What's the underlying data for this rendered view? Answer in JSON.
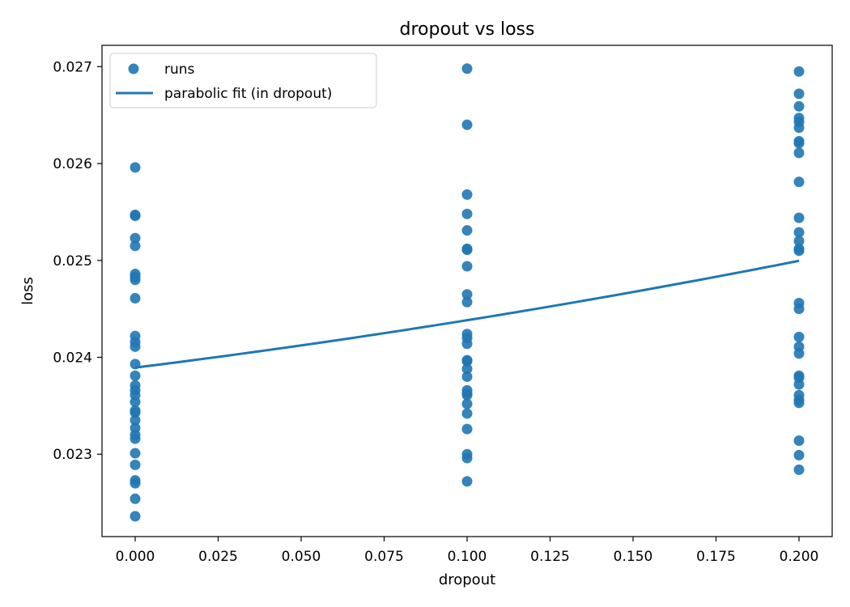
{
  "chart_data": {
    "type": "scatter",
    "title": "dropout vs loss",
    "xlabel": "dropout",
    "ylabel": "loss",
    "xlim": [
      -0.01,
      0.21
    ],
    "ylim": [
      0.02215,
      0.02722
    ],
    "xticks": [
      0.0,
      0.025,
      0.05,
      0.075,
      0.1,
      0.125,
      0.15,
      0.175,
      0.2
    ],
    "xtick_labels": [
      "0.000",
      "0.025",
      "0.050",
      "0.075",
      "0.100",
      "0.125",
      "0.150",
      "0.175",
      "0.200"
    ],
    "yticks": [
      0.023,
      0.024,
      0.025,
      0.026,
      0.027
    ],
    "ytick_labels": [
      "0.023",
      "0.024",
      "0.025",
      "0.026",
      "0.027"
    ],
    "grid": false,
    "legend_position": "top-left",
    "color": "#1f77b4",
    "series": [
      {
        "name": "runs",
        "kind": "scatter",
        "points": [
          [
            0.0,
            0.02596
          ],
          [
            0.0,
            0.02547
          ],
          [
            0.0,
            0.02546
          ],
          [
            0.0,
            0.02523
          ],
          [
            0.0,
            0.02515
          ],
          [
            0.0,
            0.02486
          ],
          [
            0.0,
            0.02483
          ],
          [
            0.0,
            0.0248
          ],
          [
            0.0,
            0.02461
          ],
          [
            0.0,
            0.02422
          ],
          [
            0.0,
            0.02416
          ],
          [
            0.0,
            0.02411
          ],
          [
            0.0,
            0.02393
          ],
          [
            0.0,
            0.02381
          ],
          [
            0.0,
            0.02371
          ],
          [
            0.0,
            0.02366
          ],
          [
            0.0,
            0.02361
          ],
          [
            0.0,
            0.02354
          ],
          [
            0.0,
            0.02345
          ],
          [
            0.0,
            0.02343
          ],
          [
            0.0,
            0.02335
          ],
          [
            0.0,
            0.02327
          ],
          [
            0.0,
            0.0232
          ],
          [
            0.0,
            0.02316
          ],
          [
            0.0,
            0.02301
          ],
          [
            0.0,
            0.02289
          ],
          [
            0.0,
            0.02273
          ],
          [
            0.0,
            0.0227
          ],
          [
            0.0,
            0.02254
          ],
          [
            0.0,
            0.02236
          ],
          [
            0.1,
            0.02698
          ],
          [
            0.1,
            0.0264
          ],
          [
            0.1,
            0.02568
          ],
          [
            0.1,
            0.02548
          ],
          [
            0.1,
            0.02531
          ],
          [
            0.1,
            0.02512
          ],
          [
            0.1,
            0.02511
          ],
          [
            0.1,
            0.02494
          ],
          [
            0.1,
            0.02465
          ],
          [
            0.1,
            0.02457
          ],
          [
            0.1,
            0.02424
          ],
          [
            0.1,
            0.0242
          ],
          [
            0.1,
            0.02414
          ],
          [
            0.1,
            0.02397
          ],
          [
            0.1,
            0.02396
          ],
          [
            0.1,
            0.02388
          ],
          [
            0.1,
            0.0238
          ],
          [
            0.1,
            0.02366
          ],
          [
            0.1,
            0.02363
          ],
          [
            0.1,
            0.02361
          ],
          [
            0.1,
            0.02352
          ],
          [
            0.1,
            0.02342
          ],
          [
            0.1,
            0.02326
          ],
          [
            0.1,
            0.023
          ],
          [
            0.1,
            0.02296
          ],
          [
            0.1,
            0.02272
          ],
          [
            0.2,
            0.02695
          ],
          [
            0.2,
            0.02672
          ],
          [
            0.2,
            0.02659
          ],
          [
            0.2,
            0.02647
          ],
          [
            0.2,
            0.02643
          ],
          [
            0.2,
            0.02637
          ],
          [
            0.2,
            0.02623
          ],
          [
            0.2,
            0.02621
          ],
          [
            0.2,
            0.02611
          ],
          [
            0.2,
            0.02581
          ],
          [
            0.2,
            0.02544
          ],
          [
            0.2,
            0.02529
          ],
          [
            0.2,
            0.0252
          ],
          [
            0.2,
            0.02512
          ],
          [
            0.2,
            0.0251
          ],
          [
            0.2,
            0.02456
          ],
          [
            0.2,
            0.0245
          ],
          [
            0.2,
            0.02421
          ],
          [
            0.2,
            0.02411
          ],
          [
            0.2,
            0.02404
          ],
          [
            0.2,
            0.02381
          ],
          [
            0.2,
            0.02379
          ],
          [
            0.2,
            0.02372
          ],
          [
            0.2,
            0.02361
          ],
          [
            0.2,
            0.02356
          ],
          [
            0.2,
            0.02353
          ],
          [
            0.2,
            0.02314
          ],
          [
            0.2,
            0.02299
          ],
          [
            0.2,
            0.02284
          ]
        ]
      },
      {
        "name": "parabolic fit (in dropout)",
        "kind": "line",
        "coefficients": {
          "a": 0.0062,
          "b": 0.00427,
          "c": 0.023894
        },
        "x_range": [
          0.0,
          0.2
        ]
      }
    ]
  }
}
